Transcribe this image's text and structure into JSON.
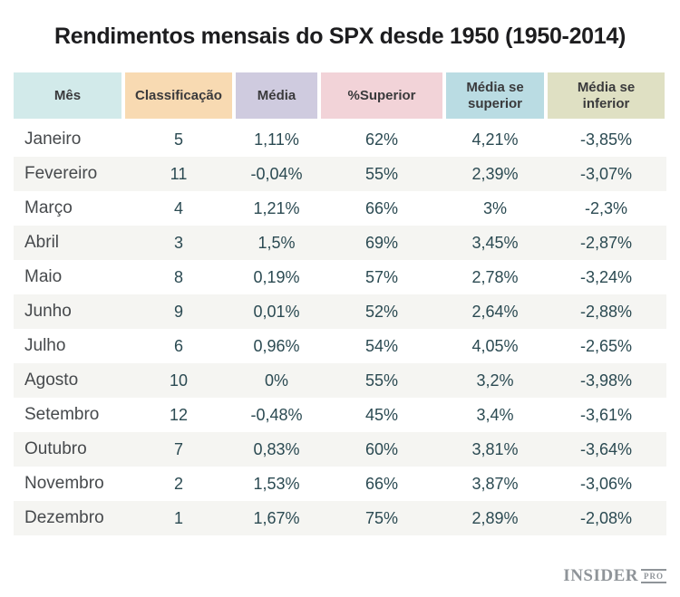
{
  "chart_data": {
    "type": "table",
    "title": "Rendimentos mensais do SPX desde 1950 (1950-2014)",
    "columns": [
      "Mês",
      "Classificação",
      "Média",
      "%Superior",
      "Média se superior",
      "Média se inferior"
    ],
    "rows": [
      [
        "Janeiro",
        "5",
        "1,11%",
        "62%",
        "4,21%",
        "-3,85%"
      ],
      [
        "Fevereiro",
        "11",
        "-0,04%",
        "55%",
        "2,39%",
        "-3,07%"
      ],
      [
        "Março",
        "4",
        "1,21%",
        "66%",
        "3%",
        "-2,3%"
      ],
      [
        "Abril",
        "3",
        "1,5%",
        "69%",
        "3,45%",
        "-2,87%"
      ],
      [
        "Maio",
        "8",
        "0,19%",
        "57%",
        "2,78%",
        "-3,24%"
      ],
      [
        "Junho",
        "9",
        "0,01%",
        "52%",
        "2,64%",
        "-2,88%"
      ],
      [
        "Julho",
        "6",
        "0,96%",
        "54%",
        "4,05%",
        "-2,65%"
      ],
      [
        "Agosto",
        "10",
        "0%",
        "55%",
        "3,2%",
        "-3,98%"
      ],
      [
        "Setembro",
        "12",
        "-0,48%",
        "45%",
        "3,4%",
        "-3,61%"
      ],
      [
        "Outubro",
        "7",
        "0,83%",
        "60%",
        "3,81%",
        "-3,64%"
      ],
      [
        "Novembro",
        "2",
        "1,53%",
        "66%",
        "3,87%",
        "-3,06%"
      ],
      [
        "Dezembro",
        "1",
        "1,67%",
        "75%",
        "2,89%",
        "-2,08%"
      ]
    ],
    "layout_hints": {
      "striped_rows": true,
      "stripe_on": "even rows (Fevereiro, Abril, Junho, Agosto, Outubro, Dezembro)"
    }
  },
  "colors": {
    "header_backgrounds": [
      "#d2eaea",
      "#f8dab2",
      "#cfcbdf",
      "#f2d3d8",
      "#badce3",
      "#dfe0c3"
    ],
    "row_stripe": "#f5f5f2",
    "month_text": "#46494c",
    "value_text": "#2b4a52",
    "header_text": "#3a3a3c",
    "brand_text": "#8f9499"
  },
  "footer": {
    "brand": "INSIDER",
    "brand_suffix": "PRO"
  }
}
